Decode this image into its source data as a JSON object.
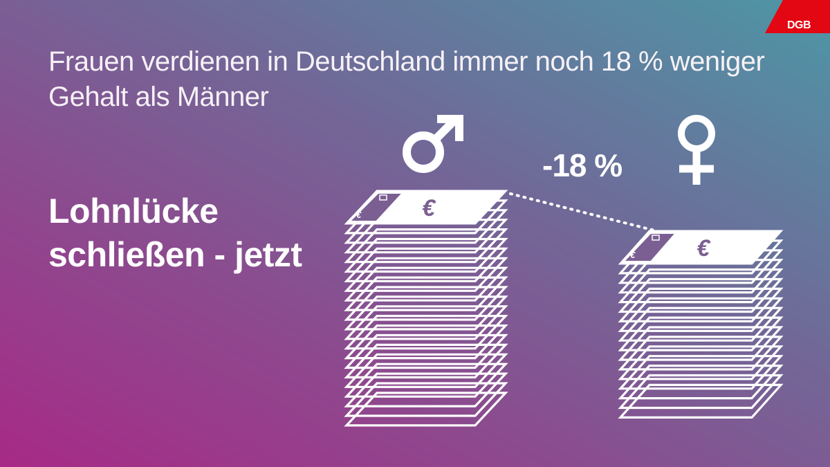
{
  "headline": "Frauen verdienen in Deutschland immer noch 18 % weniger Gehalt als Männer",
  "slogan": {
    "line1": "Lohnlücke",
    "line2": "schließen - jetzt"
  },
  "gap_label": "-18 %",
  "male_symbol": "♂",
  "female_symbol": "♀",
  "euro_symbol": "€",
  "logo_text": "DGB",
  "logo_image_text": "DGB",
  "icons": [
    "male-symbol-icon",
    "female-symbol-icon",
    "banknote-stack-icon",
    "dgb-logo-icon"
  ],
  "colors": {
    "gradient_start": "#a72a86",
    "gradient_end": "#4d97a6",
    "logo_red": "#e30613",
    "foreground": "#ffffff"
  }
}
